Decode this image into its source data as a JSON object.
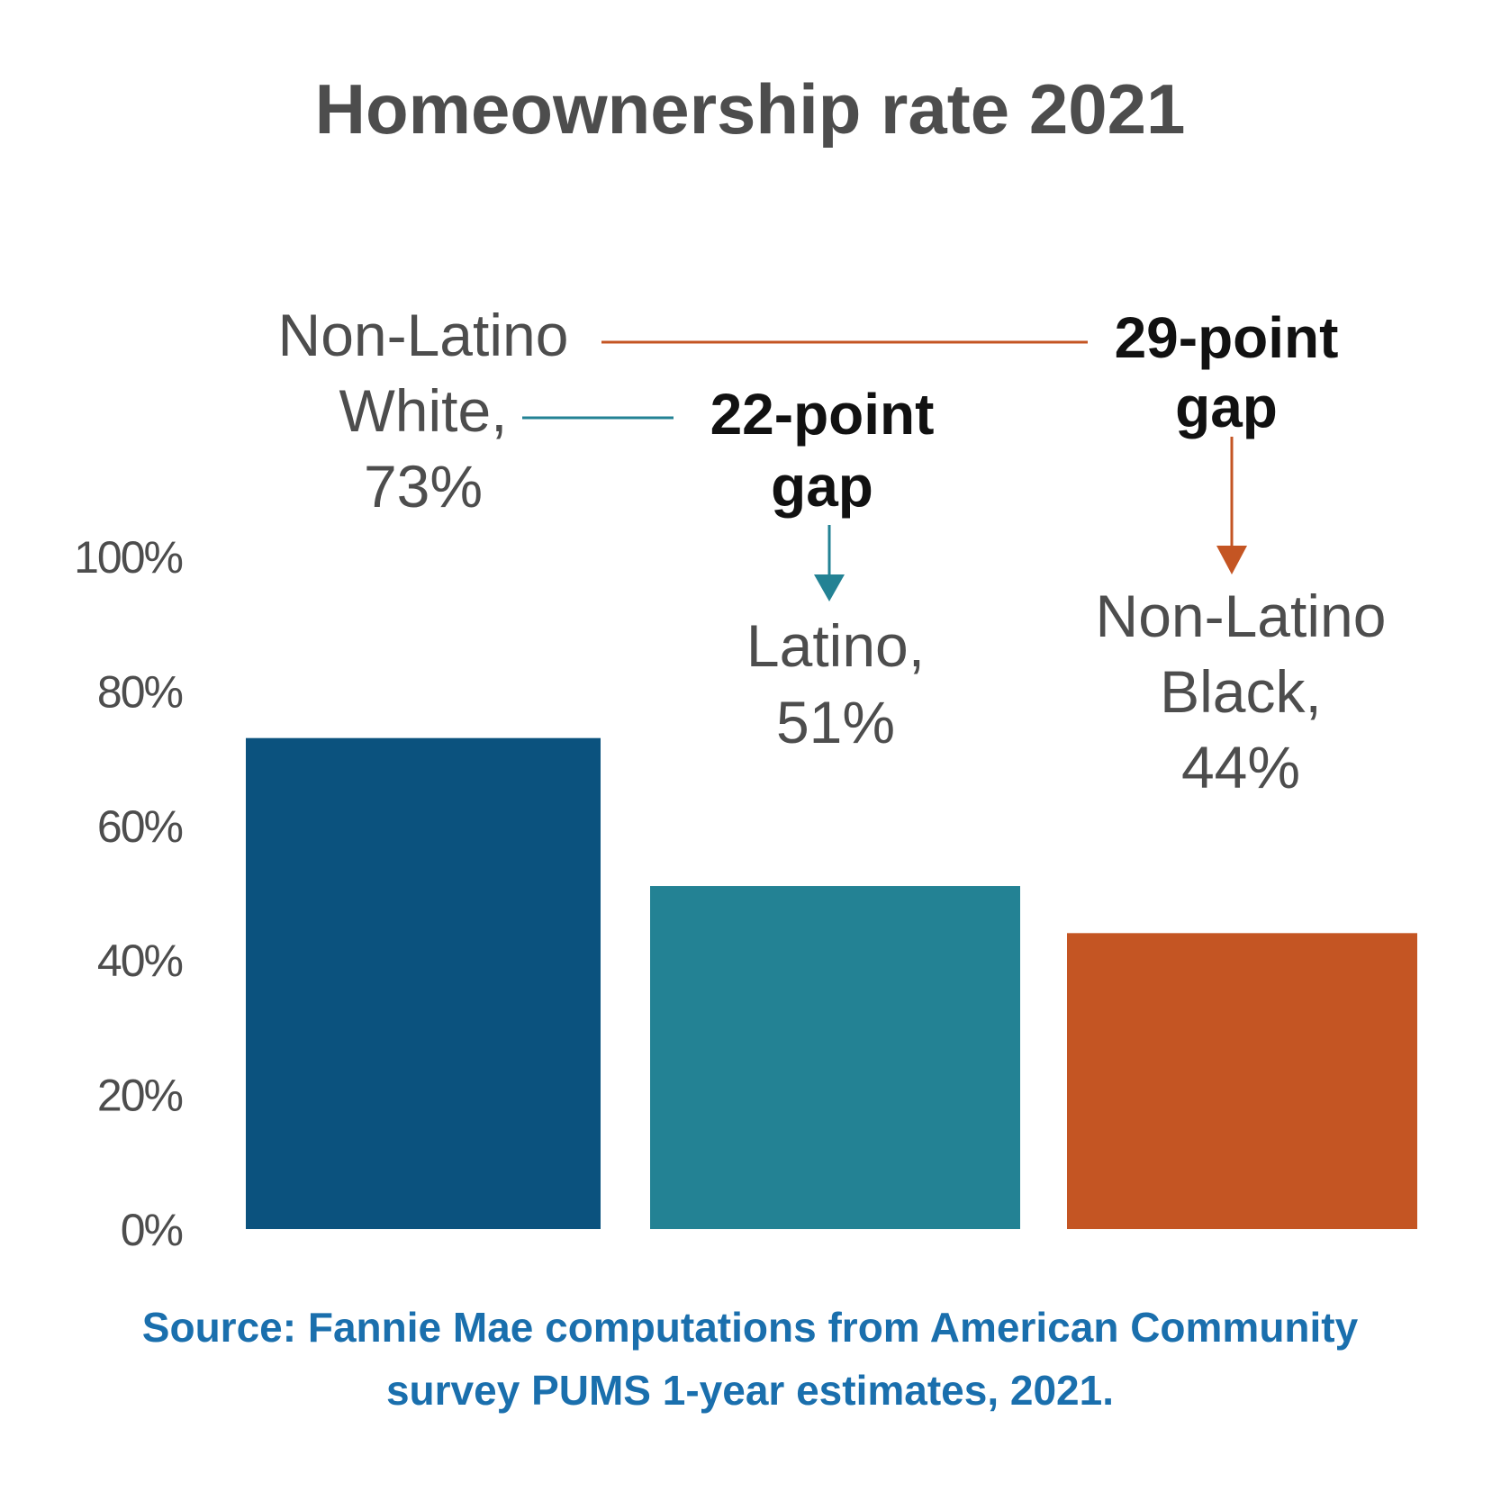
{
  "chart_data": {
    "type": "bar",
    "title": "Homeownership rate 2021",
    "categories": [
      "Non-Latino White",
      "Latino",
      "Non-Latino Black"
    ],
    "values": [
      73,
      51,
      44
    ],
    "value_unit": "%",
    "ylim": [
      0,
      100
    ],
    "yticks": [
      {
        "value": 0,
        "label": "0%"
      },
      {
        "value": 20,
        "label": "20%"
      },
      {
        "value": 40,
        "label": "40%"
      },
      {
        "value": 60,
        "label": "60%"
      },
      {
        "value": 80,
        "label": "80%"
      },
      {
        "value": 100,
        "label": "100%"
      }
    ],
    "grid": false,
    "colors": [
      "#0b527e",
      "#238294",
      "#c45523"
    ],
    "bar_labels": [
      [
        "Non-Latino",
        "White,",
        "73%"
      ],
      [
        "Latino,",
        "51%"
      ],
      [
        "Non-Latino",
        "Black,",
        "44%"
      ]
    ],
    "annotations": [
      {
        "lines": [
          "22-point",
          "gap"
        ],
        "color": "#238294"
      },
      {
        "lines": [
          "29-point",
          "gap"
        ],
        "color": "#c45523"
      }
    ],
    "source": [
      "Source: Fannie Mae computations from American Community",
      "survey PUMS 1-year estimates, 2021."
    ],
    "source_color": "#1a6fad",
    "text_color": "#4d4d4d"
  }
}
